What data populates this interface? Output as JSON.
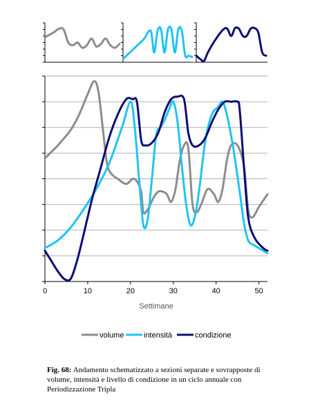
{
  "chart_data": [
    {
      "type": "line",
      "panel": "small-volume",
      "x": [
        0,
        1,
        2,
        3,
        4,
        5,
        6,
        7,
        8,
        9,
        10,
        11,
        12,
        13,
        14,
        15,
        16
      ],
      "series": [
        {
          "values": [
            3.8,
            4.2,
            4.6,
            5.1,
            5.0,
            3.0,
            2.6,
            3.0,
            2.2,
            2.6,
            3.6,
            2.4,
            2.8,
            3.6,
            2.6,
            2.2,
            2.8
          ]
        }
      ],
      "ylim": [
        0,
        6
      ],
      "colors": {
        "line": "#8c8c8c"
      }
    },
    {
      "type": "line",
      "panel": "small-intensita",
      "x": [
        0,
        2,
        4,
        6,
        8,
        9,
        10,
        11,
        12,
        13,
        14,
        15,
        16,
        17,
        18,
        19,
        20
      ],
      "series": [
        {
          "values": [
            0.5,
            1.5,
            2.5,
            3.5,
            4.8,
            1.5,
            4.8,
            5.0,
            1.5,
            5.0,
            5.0,
            1.5,
            5.0,
            4.8,
            1.0,
            1.0,
            0.8
          ]
        }
      ],
      "ylim": [
        0,
        6
      ],
      "colors": {
        "line": "#1ec4f2"
      }
    },
    {
      "type": "line",
      "panel": "small-condizione",
      "x": [
        0,
        1,
        2,
        3,
        5,
        7,
        8,
        9,
        10,
        11,
        12,
        13,
        14,
        15,
        16,
        17,
        18
      ],
      "series": [
        {
          "values": [
            1.0,
            0.5,
            0.2,
            1.5,
            3.5,
            5.0,
            5.1,
            4.0,
            5.2,
            5.1,
            4.0,
            4.0,
            5.1,
            5.2,
            4.5,
            1.5,
            1.0
          ]
        }
      ],
      "ylim": [
        0,
        6
      ],
      "colors": {
        "line": "#0b0b75"
      }
    },
    {
      "type": "line",
      "panel": "main",
      "xlabel": "Settimane",
      "xlim": [
        0,
        52
      ],
      "ylim": [
        0,
        8
      ],
      "xticks": [
        0,
        10,
        20,
        30,
        40,
        50
      ],
      "yticks": [
        0,
        1,
        2,
        3,
        4,
        5,
        6,
        7,
        8
      ],
      "grid": true,
      "legend_position": "bottom",
      "series": [
        {
          "name": "volume",
          "color": "#8c8c8c",
          "points": [
            [
              0,
              4.8
            ],
            [
              3,
              5.3
            ],
            [
              6,
              5.9
            ],
            [
              8,
              6.5
            ],
            [
              10,
              7.3
            ],
            [
              11.5,
              7.8
            ],
            [
              12.5,
              7.4
            ],
            [
              13.5,
              6.0
            ],
            [
              14.5,
              4.6
            ],
            [
              15.5,
              4.2
            ],
            [
              17,
              4.0
            ],
            [
              19,
              3.8
            ],
            [
              20.5,
              4.0
            ],
            [
              21.5,
              3.9
            ],
            [
              22.5,
              3.5
            ],
            [
              23,
              2.7
            ],
            [
              24,
              2.8
            ],
            [
              25.5,
              3.3
            ],
            [
              26.5,
              3.5
            ],
            [
              27.5,
              3.5
            ],
            [
              28.5,
              3.4
            ],
            [
              29.5,
              3.1
            ],
            [
              30.5,
              3.6
            ],
            [
              31.5,
              4.7
            ],
            [
              32.5,
              5.3
            ],
            [
              33.5,
              5.2
            ],
            [
              34.5,
              3.0
            ],
            [
              35.5,
              2.7
            ],
            [
              36.5,
              3.0
            ],
            [
              38,
              3.6
            ],
            [
              39.5,
              3.4
            ],
            [
              40.5,
              3.1
            ],
            [
              41.5,
              3.6
            ],
            [
              42.5,
              4.7
            ],
            [
              43.5,
              5.3
            ],
            [
              45,
              5.3
            ],
            [
              46.5,
              4.5
            ],
            [
              47.5,
              2.8
            ],
            [
              48.5,
              2.5
            ],
            [
              50,
              2.9
            ],
            [
              52,
              3.4
            ]
          ]
        },
        {
          "name": "intensità",
          "color": "#1ec4f2",
          "points": [
            [
              0,
              1.3
            ],
            [
              3,
              1.6
            ],
            [
              6,
              2.1
            ],
            [
              9,
              2.8
            ],
            [
              12,
              3.6
            ],
            [
              15,
              4.6
            ],
            [
              18,
              6.0
            ],
            [
              20,
              7.0
            ],
            [
              21,
              6.0
            ],
            [
              22,
              4.0
            ],
            [
              23,
              2.2
            ],
            [
              24,
              2.4
            ],
            [
              25,
              4.0
            ],
            [
              26,
              5.7
            ],
            [
              27,
              6.0
            ],
            [
              28,
              6.3
            ],
            [
              29,
              6.7
            ],
            [
              30,
              7.0
            ],
            [
              31,
              6.2
            ],
            [
              32,
              4.5
            ],
            [
              33,
              3.0
            ],
            [
              34,
              2.2
            ],
            [
              35,
              2.5
            ],
            [
              36,
              3.5
            ],
            [
              37.5,
              5.5
            ],
            [
              39,
              6.5
            ],
            [
              40.5,
              6.8
            ],
            [
              41.5,
              7.0
            ],
            [
              42.5,
              6.5
            ],
            [
              44,
              5.2
            ],
            [
              45.5,
              3.5
            ],
            [
              46.5,
              2.3
            ],
            [
              47.5,
              1.6
            ],
            [
              49,
              1.4
            ],
            [
              51,
              1.2
            ],
            [
              52,
              1.1
            ]
          ]
        },
        {
          "name": "condizione",
          "color": "#0b0b75",
          "points": [
            [
              0,
              1.2
            ],
            [
              1.5,
              0.8
            ],
            [
              3,
              0.4
            ],
            [
              4.5,
              0.1
            ],
            [
              6,
              0.1
            ],
            [
              7.5,
              0.8
            ],
            [
              9,
              1.8
            ],
            [
              11,
              3.2
            ],
            [
              13,
              4.4
            ],
            [
              15,
              5.6
            ],
            [
              17,
              6.5
            ],
            [
              19,
              7.1
            ],
            [
              20.5,
              7.1
            ],
            [
              21.5,
              7.0
            ],
            [
              22.5,
              5.5
            ],
            [
              23.5,
              5.3
            ],
            [
              25,
              5.4
            ],
            [
              26.5,
              5.8
            ],
            [
              28,
              6.6
            ],
            [
              29.5,
              7.1
            ],
            [
              31,
              7.2
            ],
            [
              32.5,
              7.1
            ],
            [
              33.5,
              5.8
            ],
            [
              34.5,
              5.3
            ],
            [
              36,
              5.3
            ],
            [
              37.5,
              5.6
            ],
            [
              39,
              6.2
            ],
            [
              40.5,
              6.7
            ],
            [
              42,
              7.0
            ],
            [
              43.5,
              7.0
            ],
            [
              45,
              7.0
            ],
            [
              45.5,
              6.7
            ],
            [
              46.5,
              4.5
            ],
            [
              47.5,
              2.5
            ],
            [
              49,
              1.7
            ],
            [
              51,
              1.3
            ],
            [
              52,
              1.2
            ]
          ]
        }
      ]
    }
  ],
  "main_x_tick_labels": [
    "0",
    "10",
    "20",
    "30",
    "40",
    "50"
  ],
  "legend": {
    "items": [
      {
        "label": "volume"
      },
      {
        "label": "intensità"
      },
      {
        "label": "condizione"
      }
    ]
  },
  "caption": {
    "label": "Fig. 68:",
    "text": " Andamento schematizzato a sezioni separate e sovrapposte di volume, intensità e livello di condizione in un ciclo annuale con Periodizzazione Tripla"
  }
}
